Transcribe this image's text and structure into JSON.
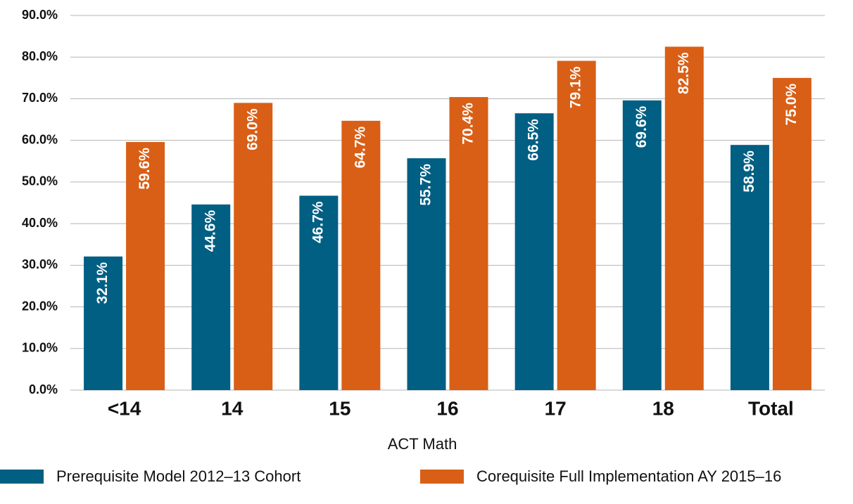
{
  "chart_data": {
    "type": "bar",
    "x_label": "ACT Math",
    "categories": [
      "<14",
      "14",
      "15",
      "16",
      "17",
      "18",
      "Total"
    ],
    "series": [
      {
        "name": "Prerequisite Model 2012–13 Cohort",
        "color": "#005f83",
        "values": [
          32.1,
          44.6,
          46.7,
          55.7,
          66.5,
          69.6,
          58.9
        ],
        "value_labels": [
          "32.1%",
          "44.6%",
          "46.7%",
          "55.7%",
          "66.5%",
          "69.6%",
          "58.9%"
        ]
      },
      {
        "name": "Corequisite Full Implementation AY 2015–16",
        "color": "#d95f16",
        "values": [
          59.6,
          69.0,
          64.7,
          70.4,
          79.1,
          82.5,
          75.0
        ],
        "value_labels": [
          "59.6%",
          "69.0%",
          "64.7%",
          "70.4%",
          "79.1%",
          "82.5%",
          "75.0%"
        ]
      }
    ],
    "ylim": [
      0,
      90
    ],
    "yticks": [
      {
        "value": 0,
        "label": "0.0%"
      },
      {
        "value": 10,
        "label": "10.0%"
      },
      {
        "value": 20,
        "label": "20.0%"
      },
      {
        "value": 30,
        "label": "30.0%"
      },
      {
        "value": 40,
        "label": "40.0%"
      },
      {
        "value": 50,
        "label": "50.0%"
      },
      {
        "value": 60,
        "label": "60.0%"
      },
      {
        "value": 70,
        "label": "70.0%"
      },
      {
        "value": 80,
        "label": "80.0%"
      },
      {
        "value": 90,
        "label": "90.0%"
      }
    ],
    "grid": true,
    "legend": "bottom"
  }
}
